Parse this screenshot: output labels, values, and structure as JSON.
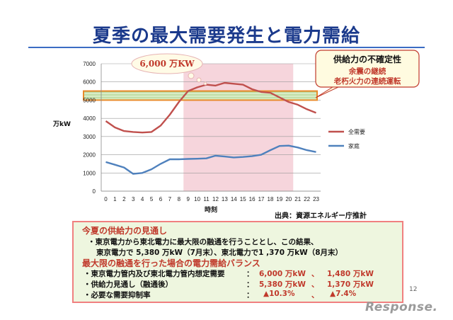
{
  "slide": {
    "title": "夏季の最大需要発生と電力需給",
    "page_number": "12",
    "logo": "Response.",
    "source": "出典：資源エネルギー庁推計"
  },
  "chart_data": {
    "type": "line",
    "title": "",
    "xlabel": "時刻",
    "ylabel": "万kW",
    "x": [
      0,
      1,
      2,
      3,
      4,
      5,
      6,
      7,
      8,
      9,
      10,
      11,
      12,
      13,
      14,
      15,
      16,
      17,
      18,
      19,
      20,
      21,
      22,
      23
    ],
    "ylim": [
      0,
      7000
    ],
    "yticks": [
      0,
      1000,
      2000,
      3000,
      4000,
      5000,
      6000,
      7000
    ],
    "series": [
      {
        "name": "全需要",
        "color": "#c0504d",
        "values": [
          3850,
          3500,
          3300,
          3250,
          3220,
          3250,
          3600,
          4200,
          4900,
          5500,
          5700,
          5850,
          5800,
          5950,
          5900,
          5850,
          5600,
          5450,
          5400,
          5150,
          4900,
          4750,
          4500,
          4300
        ]
      },
      {
        "name": "家庭",
        "color": "#4f81bd",
        "values": [
          1600,
          1450,
          1300,
          950,
          1000,
          1200,
          1500,
          1750,
          1750,
          1770,
          1780,
          1800,
          1950,
          1900,
          1850,
          1880,
          1920,
          2000,
          2250,
          2480,
          2500,
          2400,
          2250,
          2150
        ]
      }
    ],
    "legend_position": "right",
    "peak_callout": "6,000 万KW",
    "supply_band": {
      "from": 5000,
      "to": 5500
    },
    "highlight_hours": [
      9,
      20
    ],
    "supply_note": {
      "title": "供給力の不確定性",
      "lines": [
        "余震の継続",
        "老朽火力の連続運転"
      ]
    }
  },
  "outlook": {
    "heading1": "今夏の供給力の見通し",
    "line1": "・東京電力から東北電力に最大限の融通を行うこととし、この結果、",
    "line2": "東京電力で 5,380 万kW（7月末）、東北電力で1 ,370 万kW（8月末）",
    "heading2": "最大限の融通を行った場合の電力需給バランス",
    "rows": [
      {
        "label": "・東京電力管内及び東北電力管内想定需要",
        "sep": "：",
        "v1": "6,000 万kW",
        "comma": "、",
        "v2": "1,480 万kW"
      },
      {
        "label": "・供給力見通し（融通後）",
        "sep": "：",
        "v1": "5,380 万kW",
        "comma": "、",
        "v2": "1,370 万kW"
      },
      {
        "label": "・必要な需要抑制率",
        "sep": "：",
        "v1": "▲10.3%",
        "comma": "、",
        "v2": "▲7.4%"
      }
    ]
  }
}
